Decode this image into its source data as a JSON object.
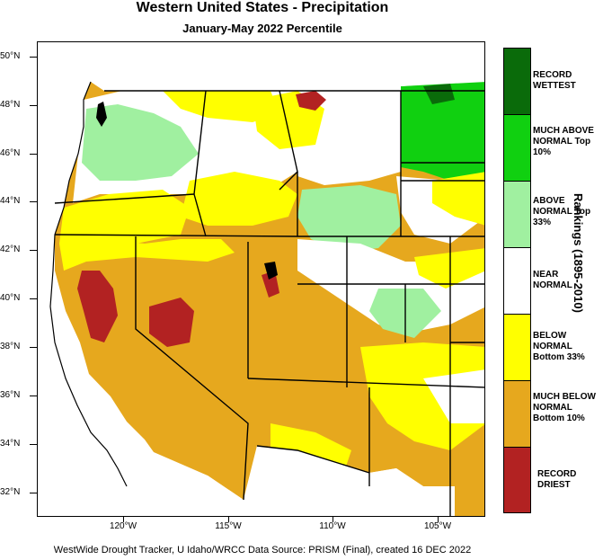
{
  "title": "Western United States - Precipitation",
  "subtitle": "January-May 2022 Percentile",
  "legend_title": "Rankings (1895-2010)",
  "legend": [
    {
      "label": "RECORD WETTEST",
      "color": "#0a6b0a"
    },
    {
      "label": "MUCH ABOVE NORMAL Top 10%",
      "color": "#10d010"
    },
    {
      "label": "ABOVE NORMAL Top 33%",
      "color": "#a0f0a0"
    },
    {
      "label": "NEAR NORMAL",
      "color": "#ffffff"
    },
    {
      "label": "BELOW NORMAL Bottom 33%",
      "color": "#ffff00"
    },
    {
      "label": "MUCH BELOW NORMAL Bottom 10%",
      "color": "#e6a81e"
    },
    {
      "label": "RECORD DRIEST",
      "color": "#b22222"
    }
  ],
  "lat_labels": [
    "50°N",
    "48°N",
    "46°N",
    "44°N",
    "42°N",
    "40°N",
    "38°N",
    "36°N",
    "34°N",
    "32°N"
  ],
  "lon_labels": [
    "120°W",
    "115°W",
    "110°W",
    "105°W"
  ],
  "footer": "WestWide Drought Tracker, U Idaho/WRCC Data Source: PRISM (Final), created 16 DEC 2022"
}
